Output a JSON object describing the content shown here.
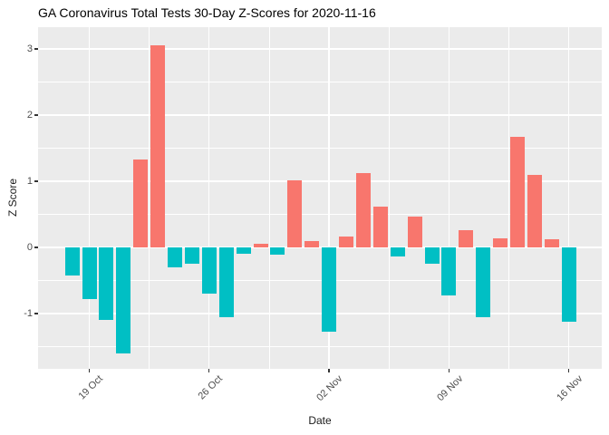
{
  "chart_data": {
    "type": "bar",
    "title": "GA Coronavirus Total Tests 30-Day Z-Scores for 2020-11-16",
    "xlabel": "Date",
    "ylabel": "Z Score",
    "x": [
      "2020-10-18",
      "2020-10-19",
      "2020-10-20",
      "2020-10-21",
      "2020-10-22",
      "2020-10-23",
      "2020-10-24",
      "2020-10-25",
      "2020-10-26",
      "2020-10-27",
      "2020-10-28",
      "2020-10-29",
      "2020-10-30",
      "2020-10-31",
      "2020-11-01",
      "2020-11-02",
      "2020-11-03",
      "2020-11-04",
      "2020-11-05",
      "2020-11-06",
      "2020-11-07",
      "2020-11-08",
      "2020-11-09",
      "2020-11-10",
      "2020-11-11",
      "2020-11-12",
      "2020-11-13",
      "2020-11-14",
      "2020-11-15",
      "2020-11-16"
    ],
    "values": [
      -0.42,
      -0.78,
      -1.1,
      -1.6,
      1.33,
      3.06,
      -0.3,
      -0.25,
      -0.7,
      -1.06,
      -0.09,
      0.06,
      -0.11,
      1.02,
      0.1,
      -1.28,
      0.17,
      1.12,
      0.62,
      -0.14,
      0.47,
      -0.25,
      -0.73,
      0.26,
      -1.06,
      0.14,
      1.67,
      1.1,
      0.13,
      -1.13
    ],
    "x_tick_labels": [
      "19 Oct",
      "26 Oct",
      "02 Nov",
      "09 Nov",
      "16 Nov"
    ],
    "x_tick_indices": [
      1,
      8,
      15,
      22,
      29
    ],
    "y_tick_labels": [
      "3",
      "2",
      "1",
      "0",
      "-1"
    ],
    "y_major_values": [
      3,
      2,
      1,
      0,
      -1
    ],
    "y_minor_values": [
      2.5,
      1.5,
      0.5,
      -0.5,
      -1.5
    ],
    "ylim": [
      -1.85,
      3.33
    ],
    "legend": "none",
    "grid": "major and minor white gridlines on gray panel",
    "colors": {
      "positive_bar": "#F8766D",
      "negative_bar": "#00BFC4",
      "panel_background": "#EBEBEB",
      "gridline": "#FFFFFF",
      "axis_text": "#4D4D4D",
      "tick_mark": "#333333",
      "title_text": "#000000"
    }
  }
}
